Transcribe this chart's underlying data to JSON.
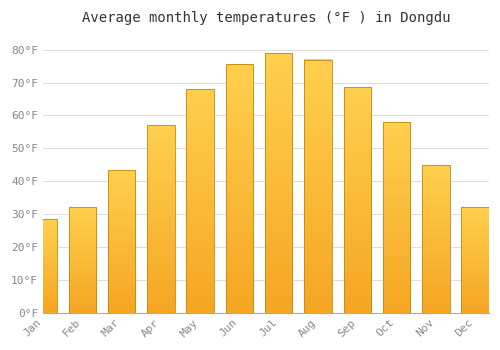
{
  "title": "Average monthly temperatures (°F ) in Dongdu",
  "months": [
    "Jan",
    "Feb",
    "Mar",
    "Apr",
    "May",
    "Jun",
    "Jul",
    "Aug",
    "Sep",
    "Oct",
    "Nov",
    "Dec"
  ],
  "values": [
    28.5,
    32.0,
    43.5,
    57.0,
    68.0,
    75.5,
    79.0,
    77.0,
    68.5,
    58.0,
    45.0,
    32.0
  ],
  "bar_color_bottom": "#F5A623",
  "bar_color_top": "#FFD04E",
  "bar_edge_color": "#C8860A",
  "background_color": "#FFFFFF",
  "grid_color": "#DDDDDD",
  "ylim": [
    0,
    85
  ],
  "yticks": [
    0,
    10,
    20,
    30,
    40,
    50,
    60,
    70,
    80
  ],
  "title_fontsize": 10,
  "tick_fontsize": 8,
  "bar_width": 0.7
}
